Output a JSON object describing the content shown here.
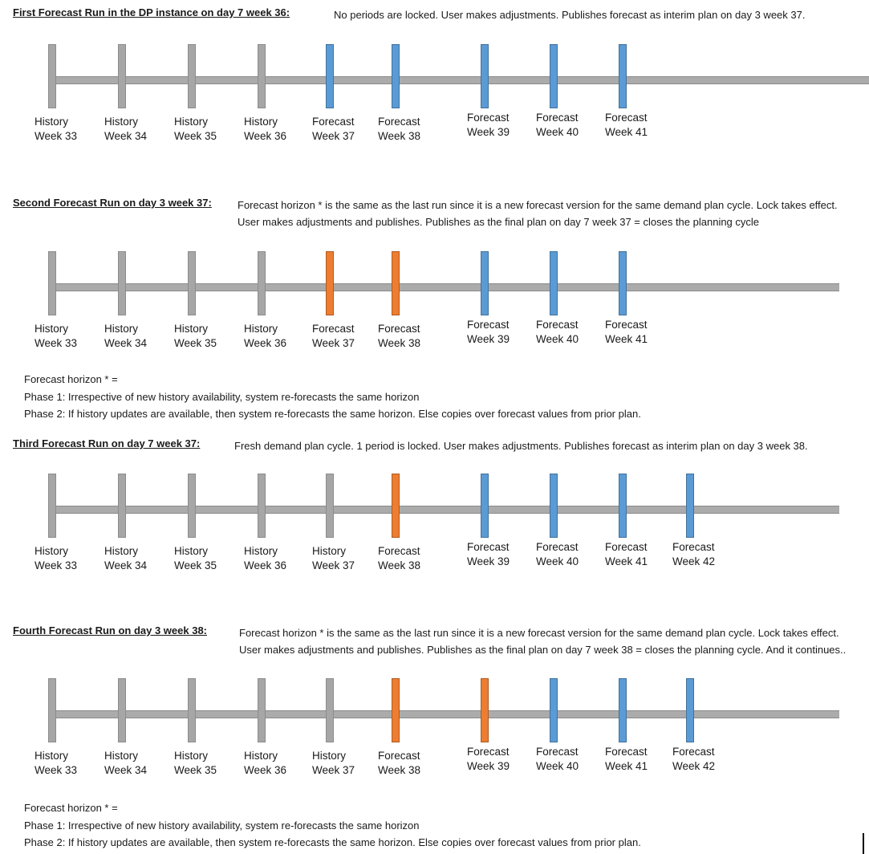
{
  "colors": {
    "history_fill": "#A6A6A6",
    "history_border": "#8C8C8C",
    "forecast_fill": "#5B9BD5",
    "forecast_border": "#41719C",
    "locked_fill": "#ED7D31",
    "locked_border": "#AE5A21",
    "bar_fill": "#ABABAB",
    "bar_border": "#8A8A8A"
  },
  "footnote_lines": [
    "Forecast horizon *  =",
    "Phase 1: Irrespective of new history availability, system re-forecasts the same horizon",
    "Phase 2: If history updates are available, then system re-forecasts the same horizon. Else copies over forecast values from prior plan."
  ],
  "sections": [
    {
      "title": "First Forecast Run in the DP instance on day 7 week 36:",
      "description": "No periods are locked. User makes adjustments. Publishes forecast as interim plan on day 3 week 37.",
      "periods": [
        {
          "label": "History",
          "week": "Week 33",
          "state": "history"
        },
        {
          "label": "History",
          "week": "Week 34",
          "state": "history"
        },
        {
          "label": "History",
          "week": "Week 35",
          "state": "history"
        },
        {
          "label": "History",
          "week": "Week 36",
          "state": "history"
        },
        {
          "label": "Forecast",
          "week": "Week 37",
          "state": "forecast"
        },
        {
          "label": "Forecast",
          "week": "Week 38",
          "state": "forecast"
        },
        {
          "label": "Forecast",
          "week": "Week 39",
          "state": "forecast"
        },
        {
          "label": "Forecast",
          "week": "Week 40",
          "state": "forecast"
        },
        {
          "label": "Forecast",
          "week": "Week 41",
          "state": "forecast"
        }
      ]
    },
    {
      "title": "Second Forecast Run on day 3 week 37:",
      "description": "Forecast horizon * is the same as the last run since it is a new forecast version for the same demand plan cycle. Lock takes effect. User makes adjustments and publishes. Publishes as the final plan on  day 7 week 37 = closes the planning cycle",
      "periods": [
        {
          "label": "History",
          "week": "Week 33",
          "state": "history"
        },
        {
          "label": "History",
          "week": "Week 34",
          "state": "history"
        },
        {
          "label": "History",
          "week": "Week 35",
          "state": "history"
        },
        {
          "label": "History",
          "week": "Week 36",
          "state": "history"
        },
        {
          "label": "Forecast",
          "week": "Week 37",
          "state": "locked"
        },
        {
          "label": "Forecast",
          "week": "Week 38",
          "state": "locked"
        },
        {
          "label": "Forecast",
          "week": "Week 39",
          "state": "forecast"
        },
        {
          "label": "Forecast",
          "week": "Week 40",
          "state": "forecast"
        },
        {
          "label": "Forecast",
          "week": "Week 41",
          "state": "forecast"
        }
      ]
    },
    {
      "title": "Third Forecast Run on day 7 week 37:",
      "description": "Fresh demand plan cycle. 1 period is locked. User makes adjustments. Publishes forecast as interim plan on day 3 week 38.",
      "periods": [
        {
          "label": "History",
          "week": "Week 33",
          "state": "history"
        },
        {
          "label": "History",
          "week": "Week 34",
          "state": "history"
        },
        {
          "label": "History",
          "week": "Week 35",
          "state": "history"
        },
        {
          "label": "History",
          "week": "Week 36",
          "state": "history"
        },
        {
          "label": "History",
          "week": "Week 37",
          "state": "history"
        },
        {
          "label": "Forecast",
          "week": "Week 38",
          "state": "locked"
        },
        {
          "label": "Forecast",
          "week": "Week 39",
          "state": "forecast"
        },
        {
          "label": "Forecast",
          "week": "Week 40",
          "state": "forecast"
        },
        {
          "label": "Forecast",
          "week": "Week 41",
          "state": "forecast"
        },
        {
          "label": "Forecast",
          "week": "Week 42",
          "state": "forecast"
        }
      ]
    },
    {
      "title": "Fourth Forecast Run on day 3 week 38:",
      "description": "Forecast horizon * is the same as the last run since it is a new forecast version for the same demand plan cycle. Lock takes effect. User makes adjustments and publishes. Publishes as the final plan on  day 7 week 38 = closes the planning cycle. And it continues..",
      "periods": [
        {
          "label": "History",
          "week": "Week 33",
          "state": "history"
        },
        {
          "label": "History",
          "week": "Week 34",
          "state": "history"
        },
        {
          "label": "History",
          "week": "Week 35",
          "state": "history"
        },
        {
          "label": "History",
          "week": "Week 36",
          "state": "history"
        },
        {
          "label": "History",
          "week": "Week 37",
          "state": "history"
        },
        {
          "label": "Forecast",
          "week": "Week 38",
          "state": "locked"
        },
        {
          "label": "Forecast",
          "week": "Week 39",
          "state": "locked"
        },
        {
          "label": "Forecast",
          "week": "Week 40",
          "state": "forecast"
        },
        {
          "label": "Forecast",
          "week": "Week 41",
          "state": "forecast"
        },
        {
          "label": "Forecast",
          "week": "Week 42",
          "state": "forecast"
        }
      ]
    }
  ]
}
